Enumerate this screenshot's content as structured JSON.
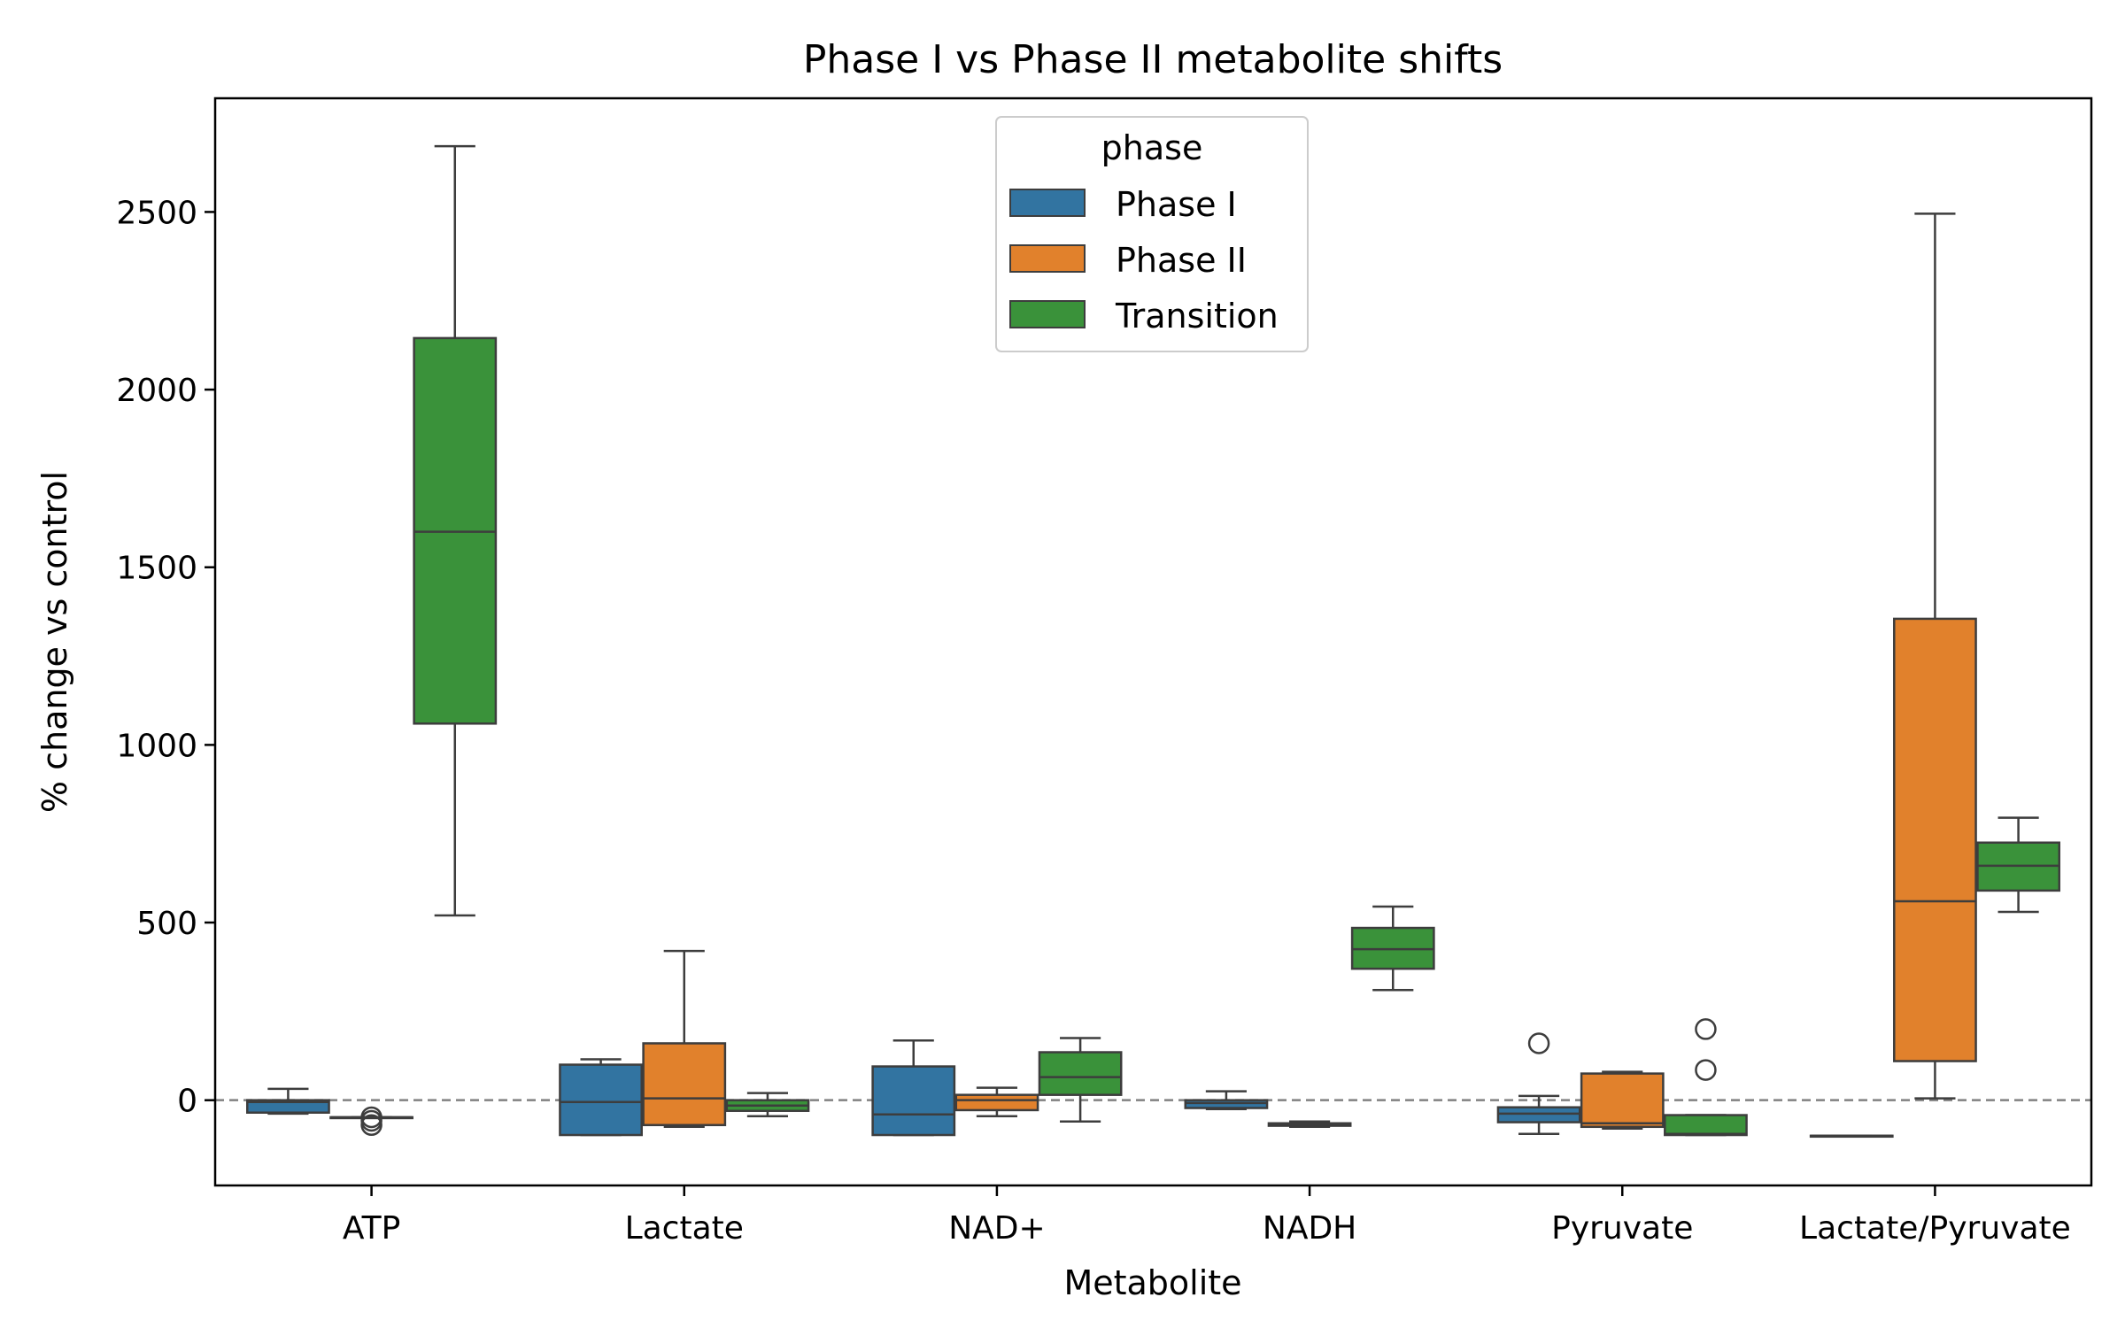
{
  "chart_data": {
    "type": "box",
    "title": "Phase I vs Phase II metabolite shifts",
    "xlabel": "Metabolite",
    "ylabel": "% change vs control",
    "ylim": [
      -240,
      2820
    ],
    "yticks": [
      0,
      500,
      1000,
      1500,
      2000,
      2500
    ],
    "yticks_labels": [
      "0",
      "500",
      "1000",
      "1500",
      "2000",
      "2500"
    ],
    "reference_line": {
      "y": 0,
      "style": "dashed",
      "color": "#808080"
    },
    "categories": [
      "ATP",
      "Lactate",
      "NAD+",
      "NADH",
      "Pyruvate",
      "Lactate/Pyruvate"
    ],
    "legend": {
      "title": "phase",
      "placement": "upper center"
    },
    "series": [
      {
        "name": "Phase I",
        "color": "#3274a1",
        "boxes": [
          {
            "category": "ATP",
            "whisker_low": -38,
            "q1": -35,
            "median": -5,
            "q3": 0,
            "whisker_high": 32,
            "outliers": []
          },
          {
            "category": "Lactate",
            "whisker_low": -98,
            "q1": -98,
            "median": -5,
            "q3": 100,
            "whisker_high": 115,
            "outliers": []
          },
          {
            "category": "NAD+",
            "whisker_low": -98,
            "q1": -98,
            "median": -40,
            "q3": 95,
            "whisker_high": 168,
            "outliers": []
          },
          {
            "category": "NADH",
            "whisker_low": -25,
            "q1": -22,
            "median": -8,
            "q3": 0,
            "whisker_high": 25,
            "outliers": []
          },
          {
            "category": "Pyruvate",
            "whisker_low": -95,
            "q1": -62,
            "median": -38,
            "q3": -20,
            "whisker_high": 12,
            "outliers": [
              160
            ]
          },
          {
            "category": "Lactate/Pyruvate",
            "whisker_low": -100,
            "q1": -100,
            "median": -100,
            "q3": -100,
            "whisker_high": -100,
            "outliers": []
          }
        ]
      },
      {
        "name": "Phase II",
        "color": "#e1812c",
        "boxes": [
          {
            "category": "ATP",
            "whisker_low": -48,
            "q1": -48,
            "median": -48,
            "q3": -48,
            "whisker_high": -48,
            "outliers": [
              -48,
              -58,
              -70
            ]
          },
          {
            "category": "Lactate",
            "whisker_low": -75,
            "q1": -70,
            "median": 5,
            "q3": 160,
            "whisker_high": 420,
            "outliers": []
          },
          {
            "category": "NAD+",
            "whisker_low": -45,
            "q1": -28,
            "median": 0,
            "q3": 15,
            "whisker_high": 35,
            "outliers": []
          },
          {
            "category": "NADH",
            "whisker_low": -75,
            "q1": -72,
            "median": -68,
            "q3": -65,
            "whisker_high": -60,
            "outliers": []
          },
          {
            "category": "Pyruvate",
            "whisker_low": -80,
            "q1": -75,
            "median": -65,
            "q3": 75,
            "whisker_high": 80,
            "outliers": []
          },
          {
            "category": "Lactate/Pyruvate",
            "whisker_low": 5,
            "q1": 110,
            "median": 560,
            "q3": 1355,
            "whisker_high": 2495,
            "outliers": []
          }
        ]
      },
      {
        "name": "Transition",
        "color": "#3a923a",
        "boxes": [
          {
            "category": "ATP",
            "whisker_low": 520,
            "q1": 1060,
            "median": 1600,
            "q3": 2145,
            "whisker_high": 2685,
            "outliers": []
          },
          {
            "category": "Lactate",
            "whisker_low": -45,
            "q1": -30,
            "median": -15,
            "q3": 0,
            "whisker_high": 20,
            "outliers": []
          },
          {
            "category": "NAD+",
            "whisker_low": -60,
            "q1": 15,
            "median": 65,
            "q3": 135,
            "whisker_high": 175,
            "outliers": []
          },
          {
            "category": "NADH",
            "whisker_low": 310,
            "q1": 370,
            "median": 425,
            "q3": 485,
            "whisker_high": 545,
            "outliers": []
          },
          {
            "category": "Pyruvate",
            "whisker_low": -98,
            "q1": -98,
            "median": -95,
            "q3": -42,
            "whisker_high": -42,
            "outliers": [
              85,
              200
            ]
          },
          {
            "category": "Lactate/Pyruvate",
            "whisker_low": 530,
            "q1": 590,
            "median": 660,
            "q3": 725,
            "whisker_high": 795,
            "outliers": []
          }
        ]
      }
    ]
  }
}
